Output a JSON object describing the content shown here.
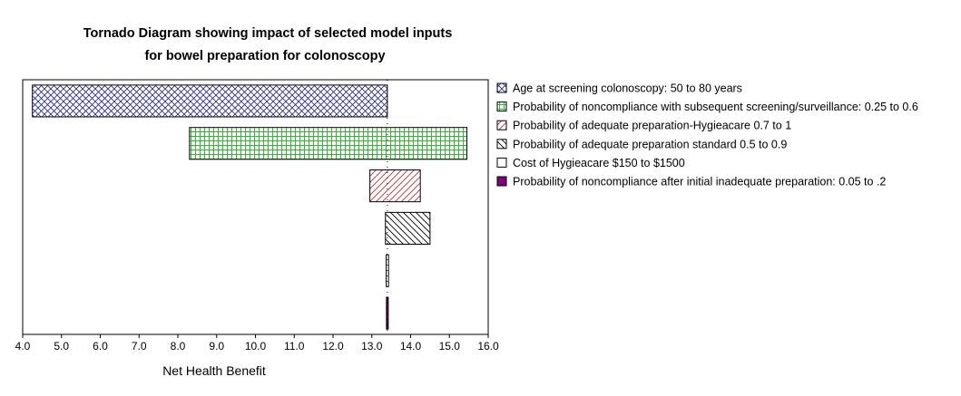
{
  "chart_data": {
    "type": "bar",
    "orientation": "horizontal",
    "subtype": "tornado",
    "title": [
      "Tornado Diagram showing impact of selected model inputs",
      "for bowel preparation for colonoscopy"
    ],
    "xlabel": "Net Health Benefit",
    "ylabel": "",
    "xlim": [
      4.0,
      16.0
    ],
    "xticks": [
      "4.0",
      "5.0",
      "6.0",
      "7.0",
      "8.0",
      "9.0",
      "10.0",
      "11.0",
      "12.0",
      "13.0",
      "14.0",
      "15.0",
      "16.0"
    ],
    "base_value": 13.4,
    "legend_position": "right",
    "bars": [
      {
        "name": "Age at screening colonoscopy: 50 to 80 years",
        "low": 4.25,
        "high": 13.4,
        "pattern": "crosshatch",
        "color": "#2b2f8a"
      },
      {
        "name": "Probability  of noncompliance with subsequent  screening/surveillance: 0.25 to 0.6",
        "low": 8.3,
        "high": 15.45,
        "pattern": "grid",
        "color": "#2dbb2d"
      },
      {
        "name": "Probability of adequate preparation-Hygieacare 0.7 to 1",
        "low": 12.95,
        "high": 14.25,
        "pattern": "diagonal-up",
        "color": "#b03030"
      },
      {
        "name": "Probability of adequate preparation standard 0.5 to 0.9",
        "low": 13.35,
        "high": 14.5,
        "pattern": "diagonal-down",
        "color": "#000000"
      },
      {
        "name": "Cost of Hygieacare $150 to $1500",
        "low": 13.37,
        "high": 13.43,
        "pattern": "none",
        "color": "#000000"
      },
      {
        "name": "Probability of noncompliance after initial inadequate preparation: 0.05 to .2",
        "low": 13.38,
        "high": 13.42,
        "pattern": "solid",
        "color": "#800080"
      }
    ]
  }
}
